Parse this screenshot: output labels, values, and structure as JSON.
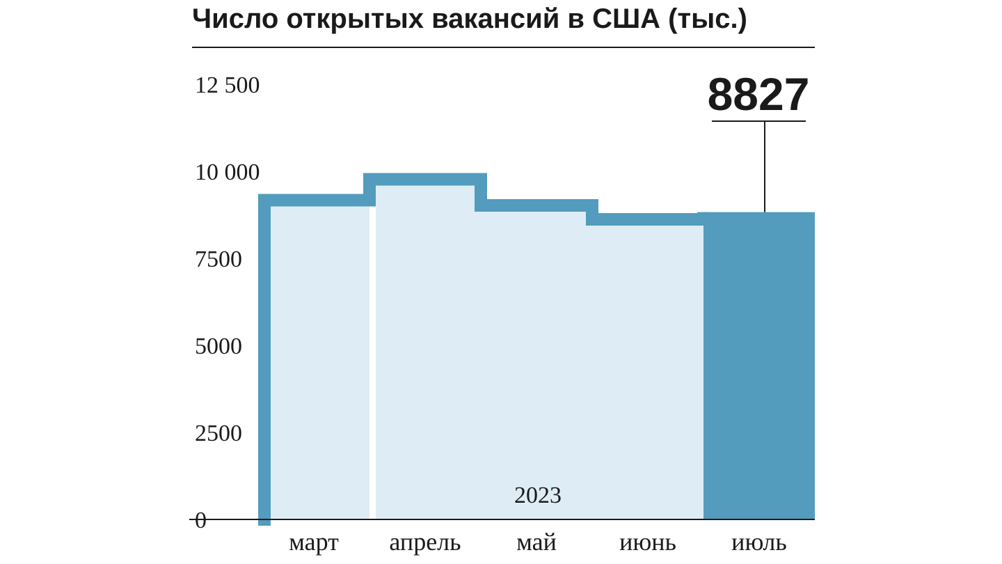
{
  "chart_data": {
    "type": "bar",
    "title": "Число открытых вакансий в США (тыс.)",
    "categories": [
      "март",
      "апрель",
      "май",
      "июнь",
      "июль"
    ],
    "values": [
      9350,
      9950,
      9200,
      8800,
      8827
    ],
    "highlight_index": 4,
    "callout_label": "8827",
    "year_label": "2023",
    "yticks": [
      "0",
      "2500",
      "5000",
      "7500",
      "10 000",
      "12 500"
    ],
    "ylim": [
      0,
      12500
    ],
    "grid": false,
    "colors": {
      "outline": "#539cbd",
      "fill_light": "#deedf5",
      "highlight": "#539cbd",
      "text": "#1a1a1a"
    }
  }
}
